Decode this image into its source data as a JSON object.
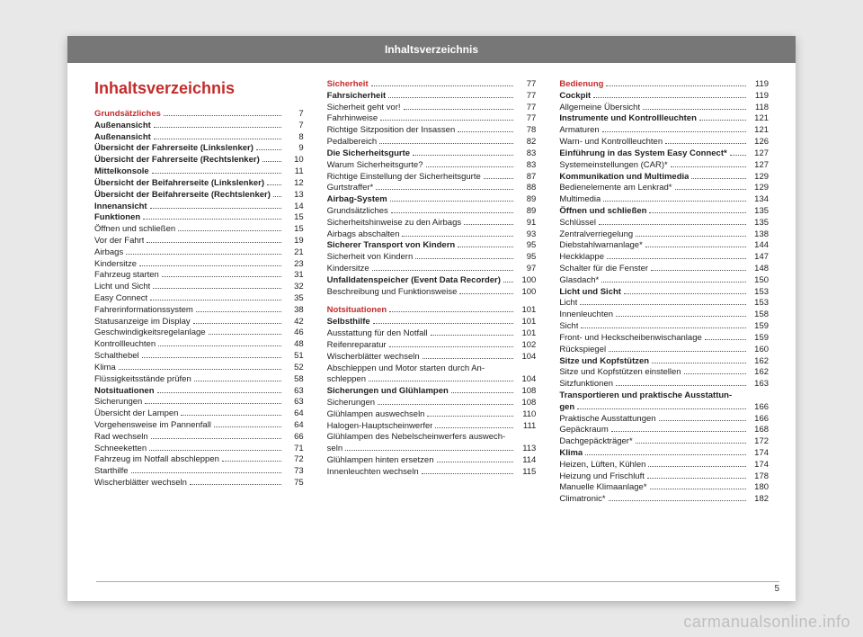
{
  "header": {
    "title": "Inhaltsverzeichnis"
  },
  "main_title": "Inhaltsverzeichnis",
  "page_number": "5",
  "watermark": "carmanualsonline.info",
  "columns": [
    {
      "items": [
        {
          "type": "section",
          "label": "Grundsätzliches",
          "page": "7"
        },
        {
          "type": "bold",
          "label": "Außenansicht",
          "page": "7"
        },
        {
          "type": "bold",
          "label": "Außenansicht",
          "page": "8"
        },
        {
          "type": "bold",
          "label": "Übersicht der Fahrerseite (Linkslenker)",
          "page": "9"
        },
        {
          "type": "bold",
          "label": "Übersicht der Fahrerseite (Rechtslenker)",
          "page": "10"
        },
        {
          "type": "bold",
          "label": "Mittelkonsole",
          "page": "11"
        },
        {
          "type": "bold",
          "label": "Übersicht der Beifahrerseite (Linkslenker)",
          "page": "12"
        },
        {
          "type": "bold",
          "label": "Übersicht der Beifahrerseite (Rechtslenker)",
          "page": "13"
        },
        {
          "type": "bold",
          "label": "Innenansicht",
          "page": "14"
        },
        {
          "type": "bold",
          "label": "Funktionen",
          "page": "15"
        },
        {
          "type": "plain",
          "label": "Öffnen und schließen",
          "page": "15"
        },
        {
          "type": "plain",
          "label": "Vor der Fahrt",
          "page": "19"
        },
        {
          "type": "plain",
          "label": "Airbags",
          "page": "21"
        },
        {
          "type": "plain",
          "label": "Kindersitze",
          "page": "23"
        },
        {
          "type": "plain",
          "label": "Fahrzeug starten",
          "page": "31"
        },
        {
          "type": "plain",
          "label": "Licht und Sicht",
          "page": "32"
        },
        {
          "type": "plain",
          "label": "Easy Connect",
          "page": "35"
        },
        {
          "type": "plain",
          "label": "Fahrerinformationssystem",
          "page": "38"
        },
        {
          "type": "plain",
          "label": "Statusanzeige im Display",
          "page": "42"
        },
        {
          "type": "plain",
          "label": "Geschwindigkeitsregelanlage",
          "page": "46"
        },
        {
          "type": "plain",
          "label": "Kontrollleuchten",
          "page": "48"
        },
        {
          "type": "plain",
          "label": "Schalthebel",
          "page": "51"
        },
        {
          "type": "plain",
          "label": "Klima",
          "page": "52"
        },
        {
          "type": "plain",
          "label": "Flüssigkeitsstände prüfen",
          "page": "58"
        },
        {
          "type": "bold",
          "label": "Notsituationen",
          "page": "63"
        },
        {
          "type": "plain",
          "label": "Sicherungen",
          "page": "63"
        },
        {
          "type": "plain",
          "label": "Übersicht der Lampen",
          "page": "64"
        },
        {
          "type": "plain",
          "label": "Vorgehensweise im Pannenfall",
          "page": "64"
        },
        {
          "type": "plain",
          "label": "Rad wechseln",
          "page": "66"
        },
        {
          "type": "plain",
          "label": "Schneeketten",
          "page": "71"
        },
        {
          "type": "plain",
          "label": "Fahrzeug im Notfall abschleppen",
          "page": "72"
        },
        {
          "type": "plain",
          "label": "Starthilfe",
          "page": "73"
        },
        {
          "type": "plain",
          "label": "Wischerblätter wechseln",
          "page": "75"
        }
      ]
    },
    {
      "items": [
        {
          "type": "section",
          "label": "Sicherheit",
          "page": "77"
        },
        {
          "type": "bold",
          "label": "Fahrsicherheit",
          "page": "77"
        },
        {
          "type": "plain",
          "label": "Sicherheit geht vor!",
          "page": "77"
        },
        {
          "type": "plain",
          "label": "Fahrhinweise",
          "page": "77"
        },
        {
          "type": "plain",
          "label": "Richtige Sitzposition der Insassen",
          "page": "78"
        },
        {
          "type": "plain",
          "label": "Pedalbereich",
          "page": "82"
        },
        {
          "type": "bold",
          "label": "Die Sicherheitsgurte",
          "page": "83"
        },
        {
          "type": "plain",
          "label": "Warum Sicherheitsgurte?",
          "page": "83"
        },
        {
          "type": "plain",
          "label": "Richtige Einstellung der Sicherheitsgurte",
          "page": "87"
        },
        {
          "type": "plain",
          "label": "Gurtstraffer*",
          "page": "88"
        },
        {
          "type": "bold",
          "label": "Airbag-System",
          "page": "89"
        },
        {
          "type": "plain",
          "label": "Grundsätzliches",
          "page": "89"
        },
        {
          "type": "plain",
          "label": "Sicherheitshinweise zu den Airbags",
          "page": "91"
        },
        {
          "type": "plain",
          "label": "Airbags abschalten",
          "page": "93"
        },
        {
          "type": "bold",
          "label": "Sicherer Transport von Kindern",
          "page": "95"
        },
        {
          "type": "plain",
          "label": "Sicherheit von Kindern",
          "page": "95"
        },
        {
          "type": "plain",
          "label": "Kindersitze",
          "page": "97"
        },
        {
          "type": "bold",
          "label": "Unfalldatenspeicher (Event Data Recorder)",
          "page": "100"
        },
        {
          "type": "plain",
          "label": "Beschreibung und Funktionsweise",
          "page": "100"
        },
        {
          "type": "spacer"
        },
        {
          "type": "section",
          "label": "Notsituationen",
          "page": "101"
        },
        {
          "type": "bold",
          "label": "Selbsthilfe",
          "page": "101"
        },
        {
          "type": "plain",
          "label": "Ausstattung für den Notfall",
          "page": "101"
        },
        {
          "type": "plain",
          "label": "Reifenreparatur",
          "page": "102"
        },
        {
          "type": "plain",
          "label": "Wischerblätter wechseln",
          "page": "104"
        },
        {
          "type": "plain",
          "label": "Abschleppen und Motor starten durch An-\nschleppen",
          "page": "104",
          "wrap": true
        },
        {
          "type": "bold",
          "label": "Sicherungen und Glühlampen",
          "page": "108"
        },
        {
          "type": "plain",
          "label": "Sicherungen",
          "page": "108"
        },
        {
          "type": "plain",
          "label": "Glühlampen auswechseln",
          "page": "110"
        },
        {
          "type": "plain",
          "label": "Halogen-Hauptscheinwerfer",
          "page": "111"
        },
        {
          "type": "plain",
          "label": "Glühlampen des Nebelscheinwerfers auswech-\nseln",
          "page": "113",
          "wrap": true
        },
        {
          "type": "plain",
          "label": "Glühlampen hinten ersetzen",
          "page": "114"
        },
        {
          "type": "plain",
          "label": "Innenleuchten wechseln",
          "page": "115"
        }
      ]
    },
    {
      "items": [
        {
          "type": "section",
          "label": "Bedienung",
          "page": "119"
        },
        {
          "type": "bold",
          "label": "Cockpit",
          "page": "119"
        },
        {
          "type": "plain",
          "label": "Allgemeine Übersicht",
          "page": "118"
        },
        {
          "type": "bold",
          "label": "Instrumente und Kontrollleuchten",
          "page": "121"
        },
        {
          "type": "plain",
          "label": "Armaturen",
          "page": "121"
        },
        {
          "type": "plain",
          "label": "Warn- und Kontrollleuchten",
          "page": "126"
        },
        {
          "type": "bold",
          "label": "Einführung in das System Easy Connect*",
          "page": "127"
        },
        {
          "type": "plain",
          "label": "Systemeinstellungen (CAR)*",
          "page": "127"
        },
        {
          "type": "bold",
          "label": "Kommunikation und Multimedia",
          "page": "129"
        },
        {
          "type": "plain",
          "label": "Bedienelemente am Lenkrad*",
          "page": "129"
        },
        {
          "type": "plain",
          "label": "Multimedia",
          "page": "134"
        },
        {
          "type": "bold",
          "label": "Öffnen und schließen",
          "page": "135"
        },
        {
          "type": "plain",
          "label": "Schlüssel",
          "page": "135"
        },
        {
          "type": "plain",
          "label": "Zentralverriegelung",
          "page": "138"
        },
        {
          "type": "plain",
          "label": "Diebstahlwarnanlage*",
          "page": "144"
        },
        {
          "type": "plain",
          "label": "Heckklappe",
          "page": "147"
        },
        {
          "type": "plain",
          "label": "Schalter für die Fenster",
          "page": "148"
        },
        {
          "type": "plain",
          "label": "Glasdach*",
          "page": "150"
        },
        {
          "type": "bold",
          "label": "Licht und Sicht",
          "page": "153"
        },
        {
          "type": "plain",
          "label": "Licht",
          "page": "153"
        },
        {
          "type": "plain",
          "label": "Innenleuchten",
          "page": "158"
        },
        {
          "type": "plain",
          "label": "Sicht",
          "page": "159"
        },
        {
          "type": "plain",
          "label": "Front- und Heckscheibenwischanlage",
          "page": "159"
        },
        {
          "type": "plain",
          "label": "Rückspiegel",
          "page": "160"
        },
        {
          "type": "bold",
          "label": "Sitze und Kopfstützen",
          "page": "162"
        },
        {
          "type": "plain",
          "label": "Sitze und Kopfstützen einstellen",
          "page": "162"
        },
        {
          "type": "plain",
          "label": "Sitzfunktionen",
          "page": "163"
        },
        {
          "type": "bold",
          "label": "Transportieren und praktische Ausstattun-\ngen",
          "page": "166",
          "wrap": true
        },
        {
          "type": "plain",
          "label": "Praktische Ausstattungen",
          "page": "166"
        },
        {
          "type": "plain",
          "label": "Gepäckraum",
          "page": "168"
        },
        {
          "type": "plain",
          "label": "Dachgepäckträger*",
          "page": "172"
        },
        {
          "type": "bold",
          "label": "Klima",
          "page": "174"
        },
        {
          "type": "plain",
          "label": "Heizen, Lüften, Kühlen",
          "page": "174"
        },
        {
          "type": "plain",
          "label": "Heizung und Frischluft",
          "page": "178"
        },
        {
          "type": "plain",
          "label": "Manuelle Klimaanlage*",
          "page": "180"
        },
        {
          "type": "plain",
          "label": "Climatronic*",
          "page": "182"
        }
      ]
    }
  ]
}
